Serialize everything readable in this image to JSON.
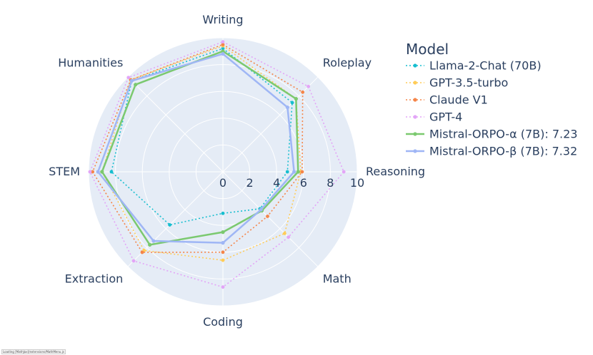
{
  "status_text": "Loading [MathJax]/extensions/MathMenu.js",
  "chart_data": {
    "type": "radar",
    "categories": [
      "Writing",
      "Roleplay",
      "Reasoning",
      "Math",
      "Coding",
      "Extraction",
      "STEM",
      "Humanities"
    ],
    "radial_range": [
      0,
      10
    ],
    "radial_ticks": [
      "0",
      "2",
      "4",
      "6",
      "8",
      "10"
    ],
    "grid": true,
    "legend_title": "Model",
    "legend_position": "top-right",
    "series": [
      {
        "name": "Llama-2-Chat (70B)",
        "color": "#17becf",
        "style": "dotted",
        "values": [
          9.2,
          7.3,
          4.8,
          3.9,
          3.1,
          5.6,
          8.3,
          9.6
        ]
      },
      {
        "name": "GPT-3.5-turbo",
        "color": "#ffcc57",
        "style": "dotted",
        "values": [
          9.4,
          7.7,
          5.8,
          6.5,
          6.6,
          8.3,
          9.0,
          9.7
        ]
      },
      {
        "name": "Claude V1",
        "color": "#f58549",
        "style": "dotted",
        "values": [
          9.5,
          8.4,
          5.9,
          4.7,
          6.0,
          8.5,
          9.7,
          9.7
        ]
      },
      {
        "name": "GPT-4",
        "color": "#e3a5f7",
        "style": "dotted",
        "values": [
          9.7,
          9.0,
          9.0,
          6.9,
          8.6,
          9.4,
          9.9,
          9.95
        ]
      },
      {
        "name": "Mistral-ORPO-α (7B): 7.23",
        "color": "#7bc96f",
        "style": "solid",
        "values": [
          9.0,
          7.7,
          5.6,
          4.1,
          4.5,
          7.7,
          9.0,
          9.2
        ]
      },
      {
        "name": "Mistral-ORPO-β (7B): 7.32",
        "color": "#9fb6f5",
        "style": "solid",
        "values": [
          8.8,
          6.8,
          5.3,
          4.0,
          5.3,
          7.3,
          9.3,
          9.6
        ]
      }
    ]
  }
}
